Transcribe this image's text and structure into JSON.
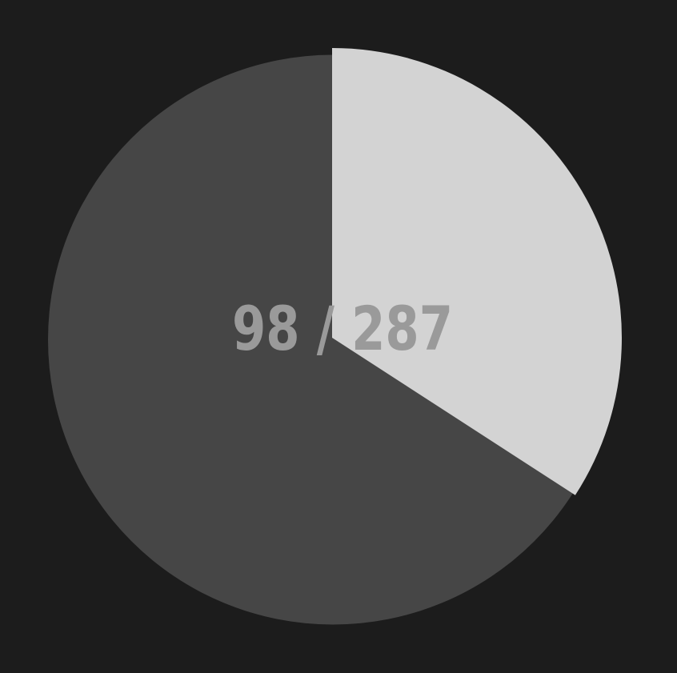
{
  "chart_data": {
    "type": "pie",
    "label": "98 / 287",
    "value": 98,
    "total": 287,
    "colors": {
      "value": "#d3d3d3",
      "rest": "#464646",
      "background": "#1c1c1c",
      "label": "#9a9a9a"
    }
  }
}
